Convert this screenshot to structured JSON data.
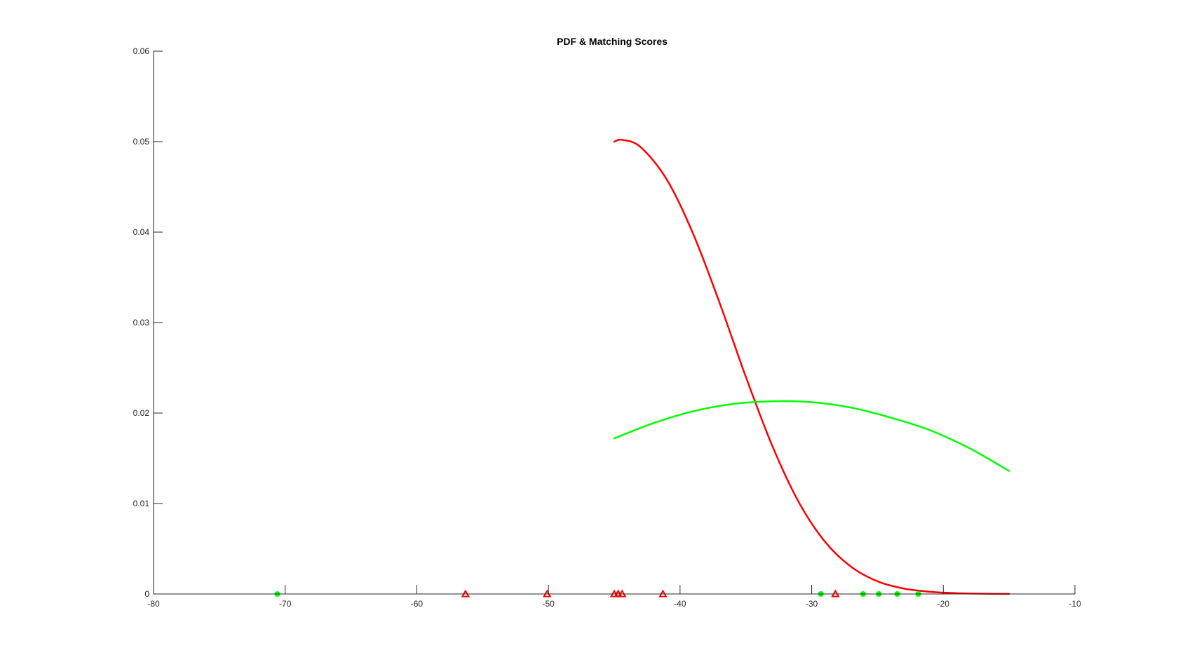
{
  "chart_data": {
    "type": "line",
    "title": "PDF & Matching Scores",
    "xlabel": "",
    "ylabel": "",
    "xlim": [
      -80,
      -10
    ],
    "ylim": [
      0,
      0.06
    ],
    "xticks": [
      -80,
      -70,
      -60,
      -50,
      -40,
      -30,
      -20,
      -10
    ],
    "xtick_labels": [
      "-80",
      "-70",
      "-60",
      "-50",
      "-40",
      "-30",
      "-20",
      "-10"
    ],
    "yticks": [
      0,
      0.01,
      0.02,
      0.03,
      0.04,
      0.05,
      0.06
    ],
    "ytick_labels": [
      "0",
      "0.01",
      "0.02",
      "0.03",
      "0.04",
      "0.05",
      "0.06"
    ],
    "grid": false,
    "legend": "none",
    "series": [
      {
        "kind": "line",
        "color": "#ff0000",
        "x": [
          -45,
          -44.4,
          -43,
          -41,
          -39,
          -37,
          -35,
          -33,
          -31,
          -29,
          -27,
          -25,
          -23,
          -21,
          -19,
          -17,
          -15
        ],
        "y": [
          0.05,
          0.0502,
          0.0494,
          0.0458,
          0.0398,
          0.0322,
          0.024,
          0.0164,
          0.0102,
          0.0058,
          0.003,
          0.0014,
          0.0006,
          0.00024,
          9e-05,
          3e-05,
          1e-05
        ]
      },
      {
        "kind": "line",
        "color": "#00ff00",
        "x": [
          -45,
          -42,
          -39,
          -36,
          -33,
          -30,
          -27,
          -24,
          -21,
          -18,
          -15
        ],
        "y": [
          0.0172,
          0.0189,
          0.0202,
          0.021,
          0.0213,
          0.0212,
          0.0206,
          0.0195,
          0.0181,
          0.0161,
          0.0136
        ]
      },
      {
        "kind": "markers",
        "marker": "triangle",
        "color": "#ff0000",
        "x": [
          -56.3,
          -50.1,
          -45.0,
          -44.7,
          -44.4,
          -41.3,
          -28.2
        ],
        "y": [
          0,
          0,
          0,
          0,
          0,
          0,
          0
        ]
      },
      {
        "kind": "markers",
        "marker": "circle",
        "color": "#00ff00",
        "x": [
          -70.6,
          -29.3,
          -26.1,
          -24.9,
          -23.5,
          -21.9
        ],
        "y": [
          0,
          0,
          0,
          0,
          0,
          0
        ]
      }
    ]
  }
}
